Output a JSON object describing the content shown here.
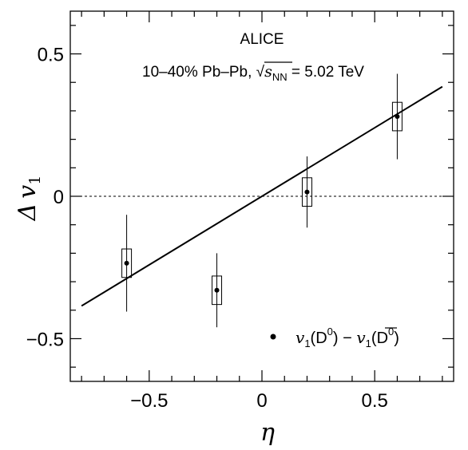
{
  "chart_data": {
    "type": "scatter",
    "annotations": {
      "experiment": "ALICE",
      "system_prefix": "10–40% Pb–Pb, ",
      "energy_symbol": "s",
      "energy_subscript": "NN",
      "energy_value": " = 5.02 TeV"
    },
    "xlabel": "η",
    "ylabel": {
      "delta": "Δ",
      "v": "v",
      "sub": "1"
    },
    "xlim": [
      -0.85,
      0.85
    ],
    "ylim": [
      -0.65,
      0.65
    ],
    "x_ticks": [
      {
        "value": -0.5,
        "label": "−0.5"
      },
      {
        "value": 0,
        "label": "0"
      },
      {
        "value": 0.5,
        "label": "0.5"
      }
    ],
    "y_ticks": [
      {
        "value": -0.5,
        "label": "−0.5"
      },
      {
        "value": 0,
        "label": "0"
      },
      {
        "value": 0.5,
        "label": "0.5"
      }
    ],
    "reference_line_y": 0,
    "fit_line": {
      "x": [
        -0.8,
        0.8
      ],
      "y": [
        -0.385,
        0.385
      ]
    },
    "series": [
      {
        "legend": {
          "v1": "v",
          "sub1": "1",
          "d1": "(D",
          "sup1": "0",
          "close1": ")",
          "minus": " − ",
          "v2": "v",
          "sub2": "1",
          "d2": "(D",
          "sup2": "0",
          "close2": ")"
        },
        "points": [
          {
            "x": -0.6,
            "y": -0.235,
            "stat_err": 0.17,
            "syst_err": 0.05
          },
          {
            "x": -0.2,
            "y": -0.33,
            "stat_err": 0.13,
            "syst_err": 0.05
          },
          {
            "x": 0.2,
            "y": 0.015,
            "stat_err": 0.125,
            "syst_err": 0.05
          },
          {
            "x": 0.6,
            "y": 0.28,
            "stat_err": 0.15,
            "syst_err": 0.05
          }
        ]
      }
    ]
  }
}
